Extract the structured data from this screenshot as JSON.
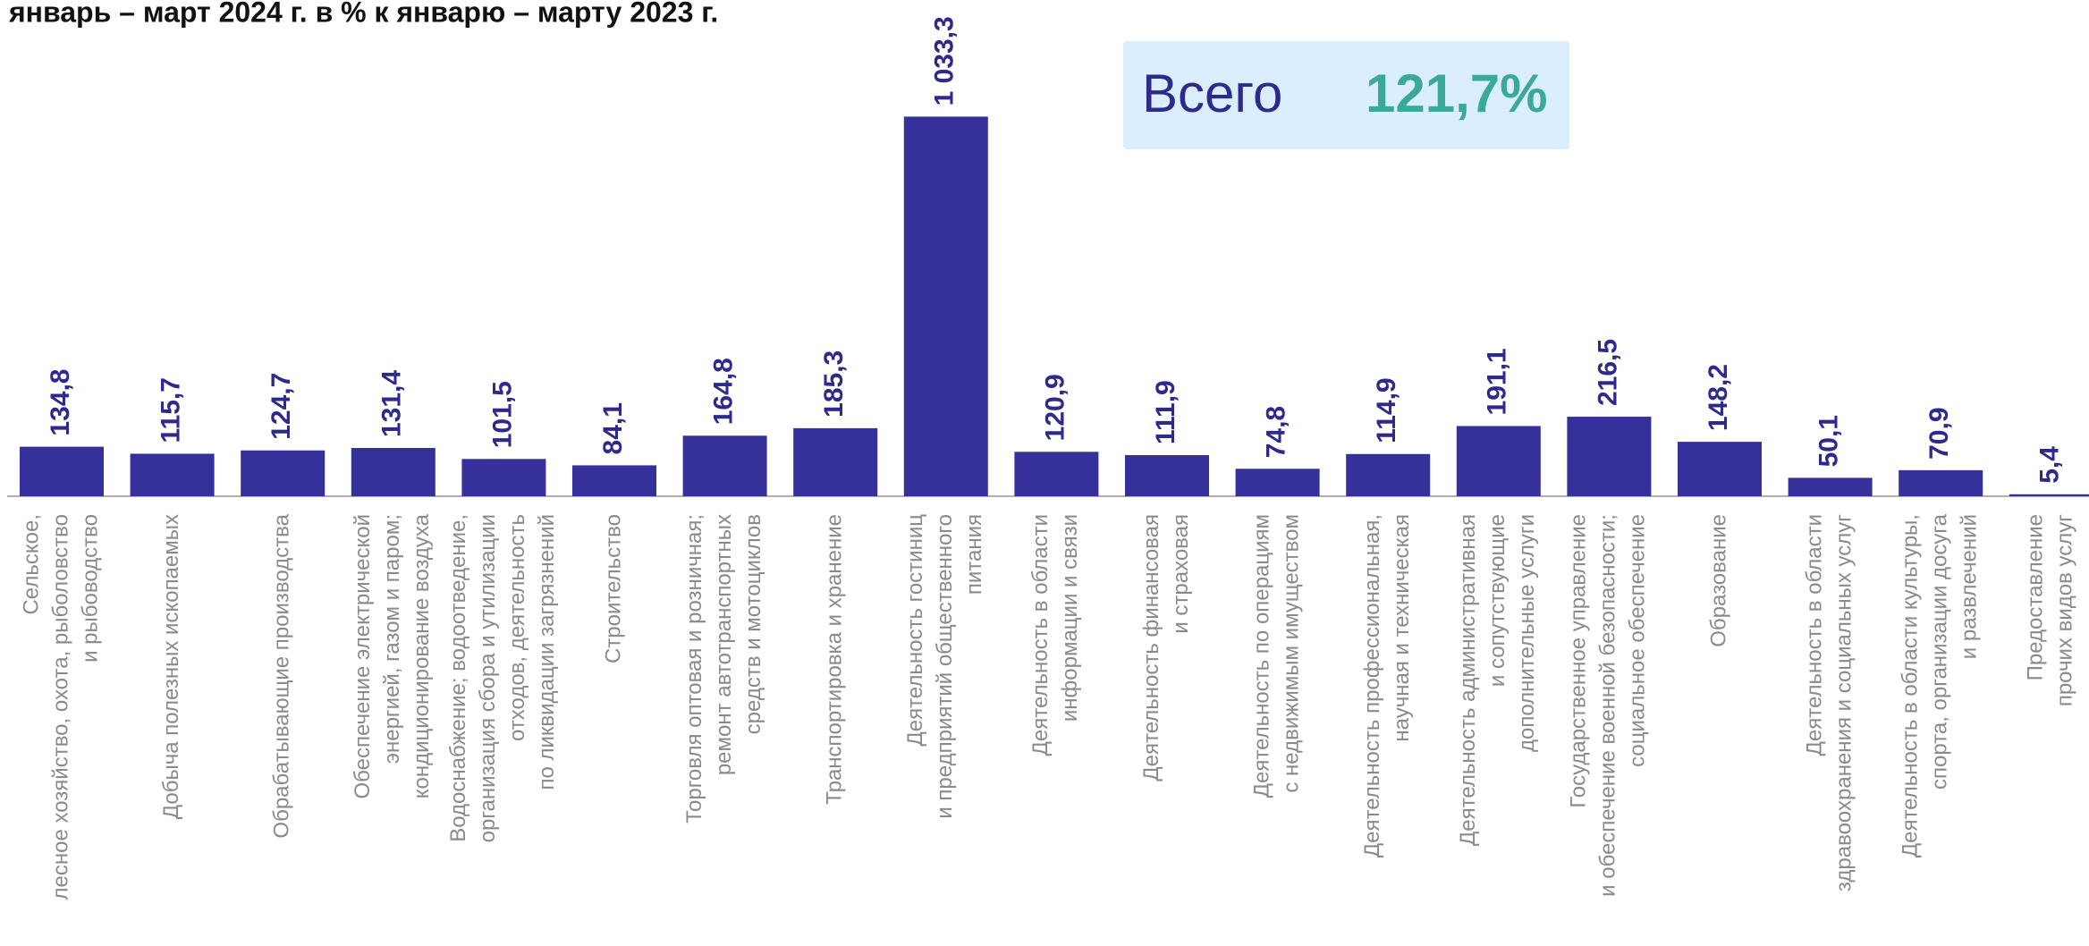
{
  "chart_data": {
    "type": "bar",
    "title": "январь – март 2024 г. в % к январю – марту 2023 г.",
    "annotations": [
      "Всего",
      "121,7%"
    ],
    "categories": [
      [
        "Сельское,",
        "лесное хозяйство, охота, рыболовство",
        "и  рыбоводство"
      ],
      [
        "Добыча полезных ископаемых"
      ],
      [
        "Обрабатывающие производства"
      ],
      [
        "Обеспечение электрической",
        "энергией, газом и паром;",
        "кондиционирование воздуха"
      ],
      [
        "Водоснабжение; водоотведение,",
        "организация сбора и утилизации",
        "отходов, деятельность",
        "по ликвидации загрязнений"
      ],
      [
        "Строительство"
      ],
      [
        "Торговля оптовая и розничная;",
        "ремонт автотранспортных",
        "средств и мотоциклов"
      ],
      [
        "Транспортировка и хранение"
      ],
      [
        "Деятельность гостиниц",
        "и предприятий общественного",
        "питания"
      ],
      [
        "Деятельность в области",
        "информации и связи"
      ],
      [
        "Деятельность финансовая",
        "и страховая"
      ],
      [
        "Деятельность по операциям",
        "с недвижимым имуществом"
      ],
      [
        "Деятельность профессиональная,",
        "научная и техническая"
      ],
      [
        "Деятельность административная",
        "и сопутствующие",
        "дополнительные услуги"
      ],
      [
        "Государственное управление",
        "и обеспечение военной безопасности;",
        "социальное обеспечение"
      ],
      [
        "Образование"
      ],
      [
        "Деятельность в области",
        "здравоохранения и социальных услуг"
      ],
      [
        "Деятельность в области культуры,",
        "спорта, организации досуга",
        "и развлечений"
      ],
      [
        "Предоставление",
        "прочих видов услуг"
      ]
    ],
    "values": [
      134.8,
      115.7,
      124.7,
      131.4,
      101.5,
      84.1,
      164.8,
      185.3,
      1033.3,
      120.9,
      111.9,
      74.8,
      114.9,
      191.1,
      216.5,
      148.2,
      50.1,
      70.9,
      5.4
    ],
    "value_labels": [
      "134,8",
      "115,7",
      "124,7",
      "131,4",
      "101,5",
      "84,1",
      "164,8",
      "185,3",
      "1 033,3",
      "120,9",
      "111,9",
      "74,8",
      "114,9",
      "191,1",
      "216,5",
      "148,2",
      "50,1",
      "70,9",
      "5,4"
    ],
    "color": "#35309a",
    "ylim": [
      0,
      1100
    ]
  }
}
